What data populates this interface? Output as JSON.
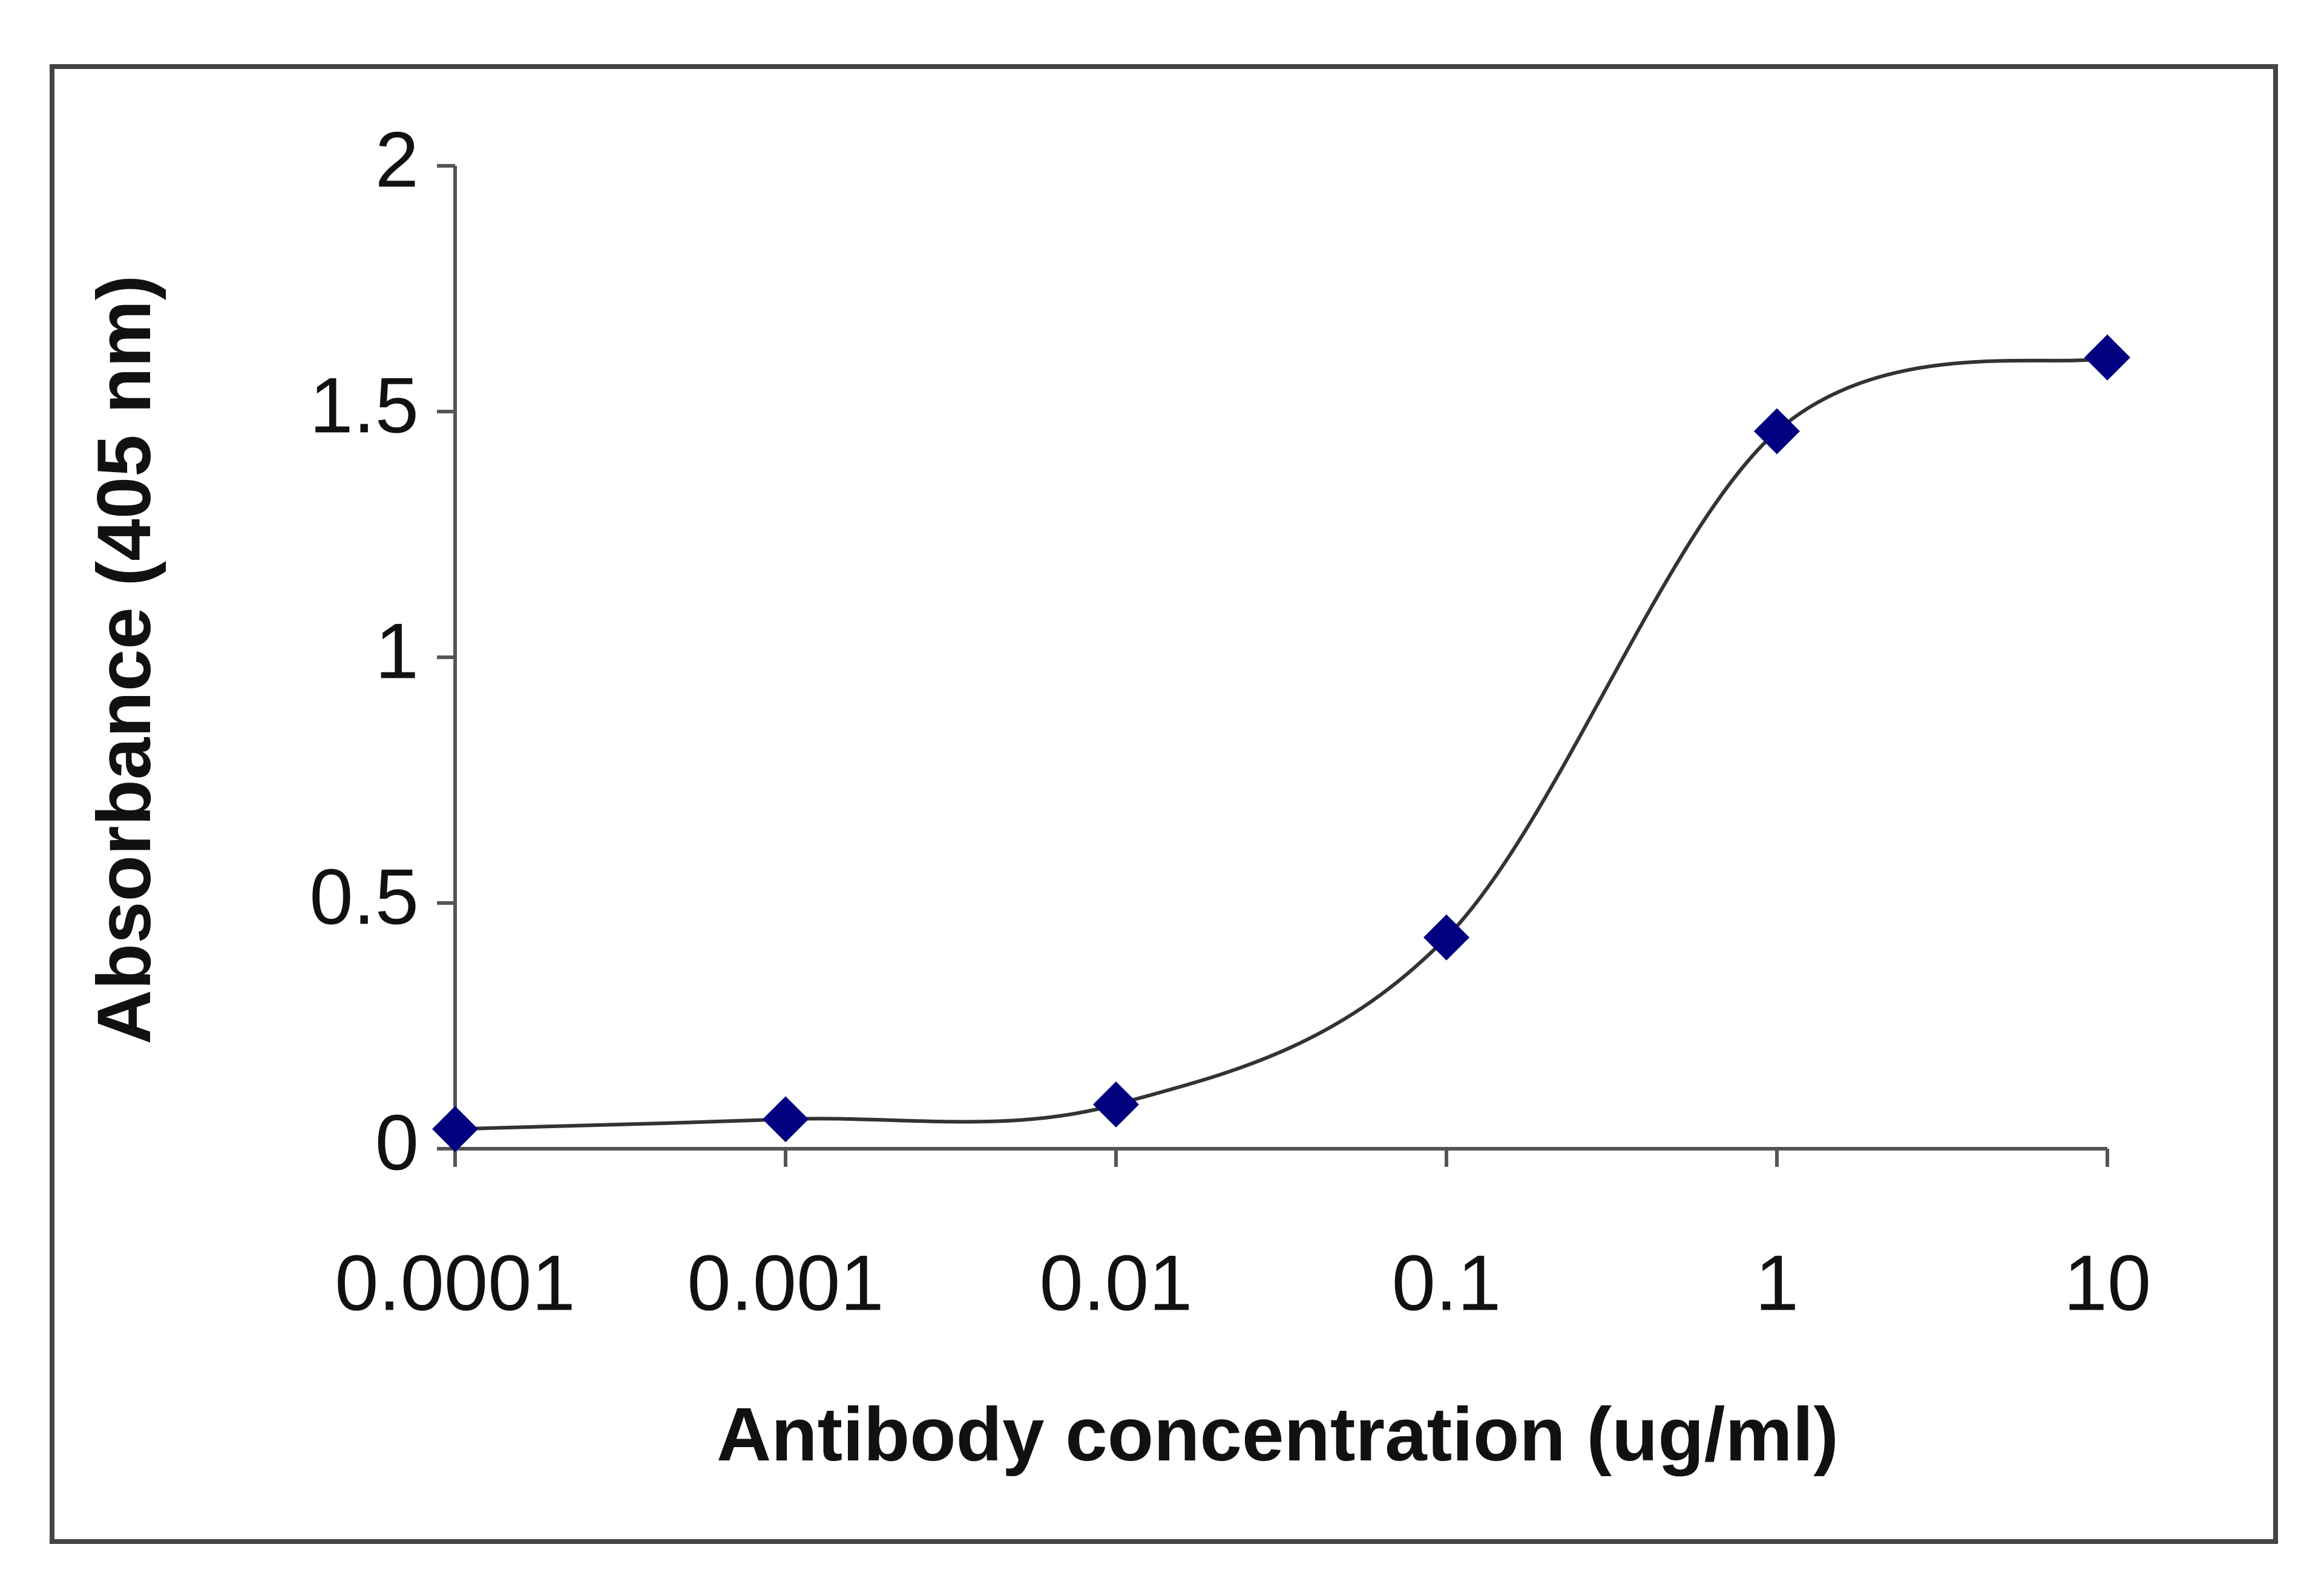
{
  "chart_data": {
    "type": "line",
    "xlabel": "Antibody concentration (ug/ml)",
    "ylabel": "Absorbance (405 nm)",
    "x": [
      0.0001,
      0.001,
      0.01,
      0.1,
      1,
      10
    ],
    "series": [
      {
        "color": "#000080",
        "values": [
          0.04,
          0.06,
          0.09,
          0.43,
          1.46,
          1.61
        ]
      }
    ],
    "xscale": "log",
    "xlim": [
      0.0001,
      10
    ],
    "xticks": [
      0.0001,
      0.001,
      0.01,
      0.1,
      1,
      10
    ],
    "ylim": [
      0,
      2
    ],
    "yticks": [
      0,
      0.5,
      1,
      1.5,
      2
    ],
    "smooth": true
  }
}
